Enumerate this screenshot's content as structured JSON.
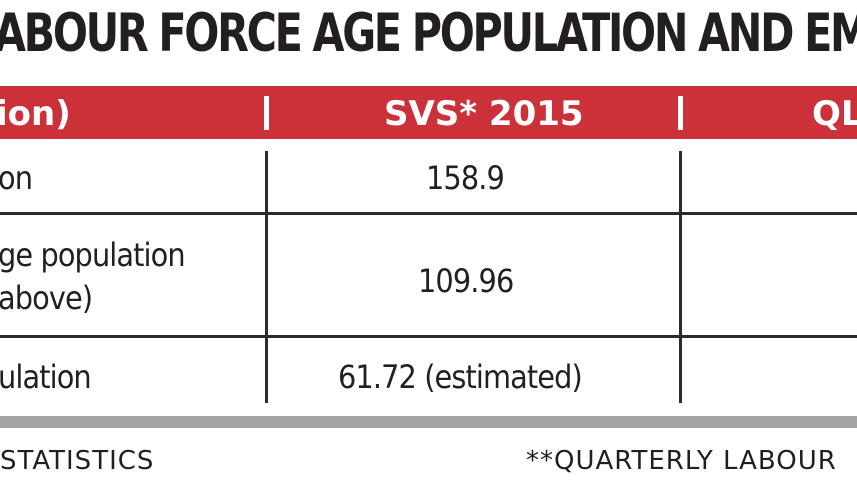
{
  "title": "ABOUR FORCE AGE POPULATION AND EM",
  "table": {
    "header": {
      "col1": "ion)",
      "col2": "SVS* 2015",
      "col3": "QL"
    },
    "rows": [
      {
        "label_line1": "on",
        "label_line2": "",
        "value": "158.9"
      },
      {
        "label_line1": "ge population",
        "label_line2": "above)",
        "value": "109.96"
      },
      {
        "label_line1": "ulation",
        "label_line2": "",
        "value": "61.72 (estimated)"
      }
    ]
  },
  "footer": {
    "left": "STATISTICS",
    "right": "**QUARTERLY LABOUR"
  },
  "colors": {
    "header_red": "#cc3038",
    "text_dark": "#231f20",
    "gray_band": "#a4a4a4"
  }
}
